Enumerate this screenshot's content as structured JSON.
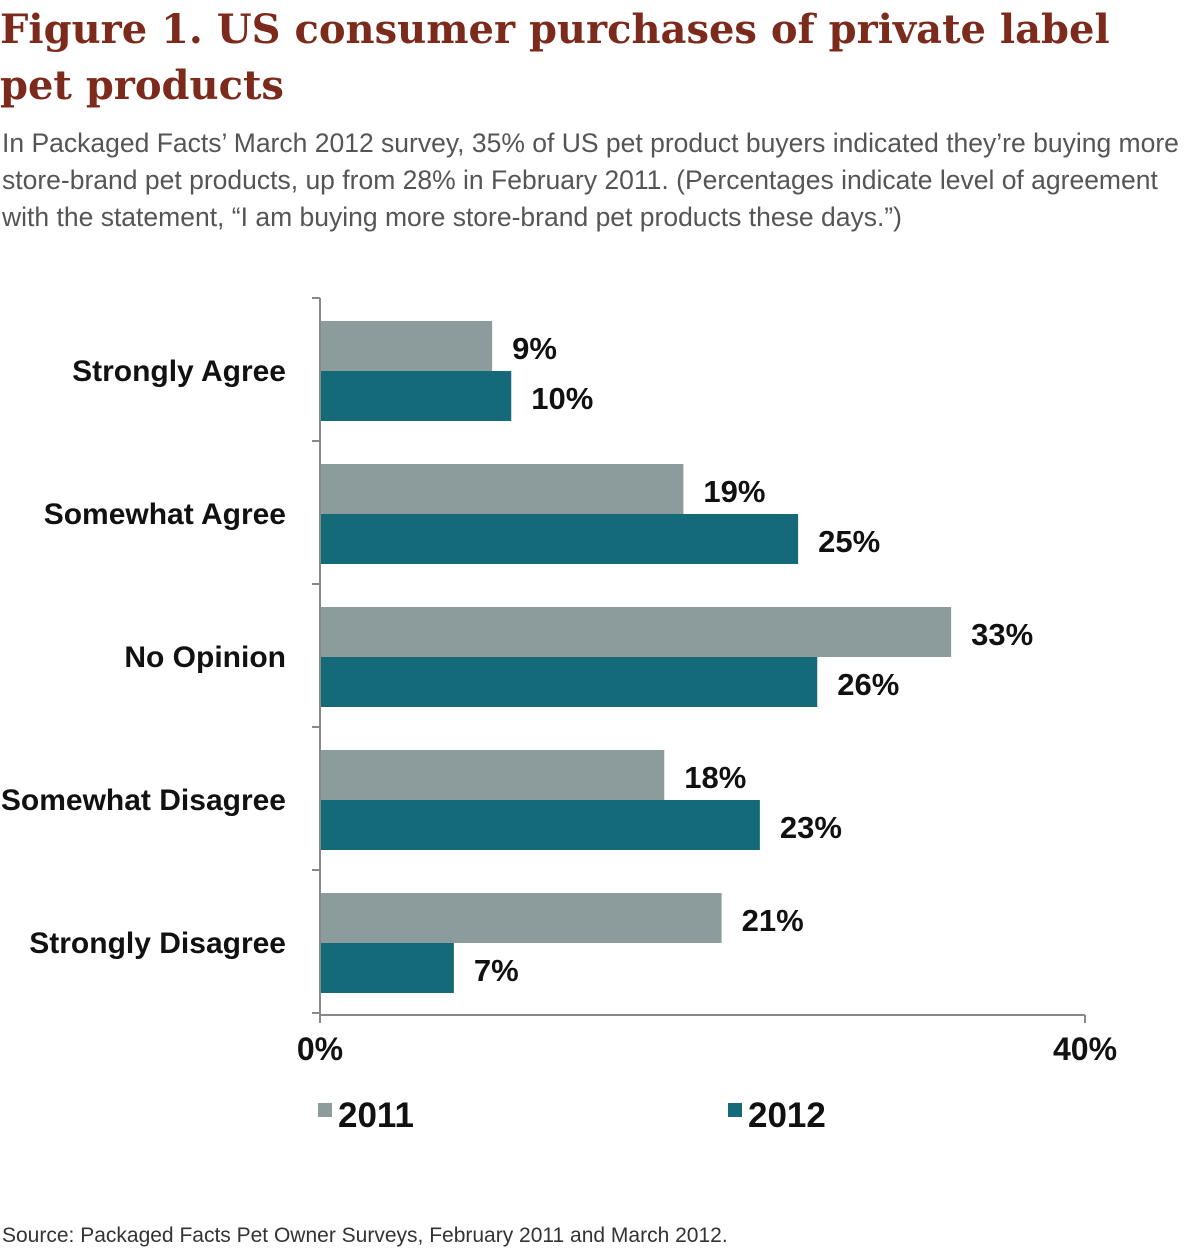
{
  "figure": {
    "title": "Figure 1. US consumer purchases of private label pet products",
    "subtitle": "In Packaged Facts’ March 2012 survey, 35% of US pet product buyers indicated they’re buying more store-brand pet products, up from 28% in February 2011. (Percentages indicate level of agreement with the statement, “I am buying more store-brand pet products these days.”)",
    "source": "Source:  Packaged Facts Pet Owner Surveys, February 2011 and March 2012."
  },
  "chart_data": {
    "type": "bar",
    "orientation": "horizontal",
    "categories": [
      "Strongly Agree",
      "Somewhat Agree",
      "No Opinion",
      "Somewhat Disagree",
      "Strongly Disagree"
    ],
    "series": [
      {
        "name": "2011",
        "values": [
          9,
          19,
          33,
          18,
          21
        ],
        "labels": [
          "9%",
          "19%",
          "33%",
          "18%",
          "21%"
        ],
        "color": "#8c9c9c"
      },
      {
        "name": "2012",
        "values": [
          10,
          25,
          26,
          23,
          7
        ],
        "labels": [
          "10%",
          "25%",
          "26%",
          "23%",
          "7%"
        ],
        "color": "#156a7a"
      }
    ],
    "xlim": [
      0,
      40
    ],
    "xticks": [
      0,
      40
    ],
    "xtick_labels": [
      "0%",
      "40%"
    ],
    "legend_position": "bottom",
    "grid": false
  }
}
